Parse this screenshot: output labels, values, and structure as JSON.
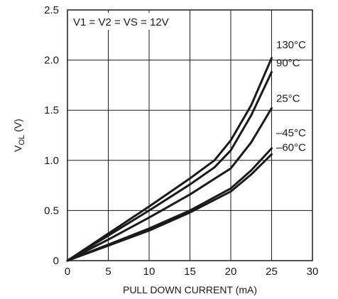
{
  "chart_data": {
    "type": "line",
    "xlabel": "PULL DOWN CURRENT (mA)",
    "ylabel_main": "V",
    "ylabel_sub": "OL",
    "ylabel_unit": "(V)",
    "xlim": [
      0,
      30
    ],
    "ylim": [
      0,
      2.5
    ],
    "xticks": [
      0,
      5,
      10,
      15,
      20,
      25,
      30
    ],
    "yticks": [
      0,
      0.5,
      1.0,
      1.5,
      2.0,
      2.5
    ],
    "ytick_labels": [
      "0",
      "0.5",
      "1.0",
      "1.5",
      "2.0",
      "2.5"
    ],
    "grid": true,
    "annotation": "V1 = V2 = VS = 12V",
    "series": [
      {
        "name": "130°C",
        "x": [
          0,
          5,
          10,
          15,
          18,
          20,
          22.5,
          25
        ],
        "y": [
          0,
          0.27,
          0.54,
          0.82,
          1.0,
          1.2,
          1.55,
          2.02
        ]
      },
      {
        "name": "90°C",
        "x": [
          0,
          5,
          10,
          15,
          18,
          20,
          22.5,
          25
        ],
        "y": [
          0,
          0.25,
          0.5,
          0.76,
          0.93,
          1.1,
          1.45,
          1.88
        ]
      },
      {
        "name": "25°C",
        "x": [
          0,
          5,
          10,
          15,
          20,
          22.5,
          25
        ],
        "y": [
          0,
          0.21,
          0.43,
          0.66,
          0.92,
          1.18,
          1.52
        ]
      },
      {
        "name": "–45°C",
        "x": [
          0,
          5,
          10,
          15,
          20,
          22.5,
          25
        ],
        "y": [
          0,
          0.16,
          0.32,
          0.5,
          0.72,
          0.9,
          1.12
        ]
      },
      {
        "name": "–60°C",
        "x": [
          0,
          5,
          10,
          15,
          20,
          22.5,
          25
        ],
        "y": [
          0,
          0.15,
          0.3,
          0.48,
          0.69,
          0.86,
          1.06
        ]
      }
    ]
  }
}
